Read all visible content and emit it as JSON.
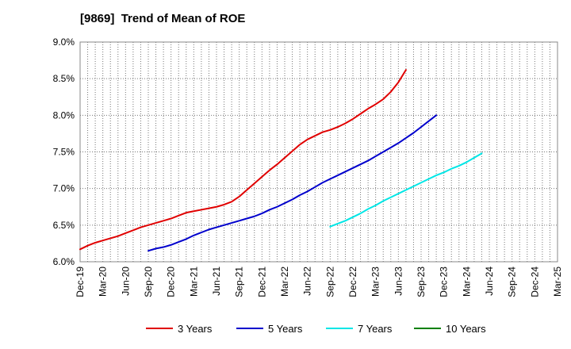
{
  "title": "[9869]  Trend of Mean of ROE",
  "chart_data": {
    "type": "line",
    "title": "[9869]  Trend of Mean of ROE",
    "xlabel": "",
    "ylabel": "",
    "x_ticks": [
      "Dec-19",
      "Mar-20",
      "Jun-20",
      "Sep-20",
      "Dec-20",
      "Mar-21",
      "Jun-21",
      "Sep-21",
      "Dec-21",
      "Mar-22",
      "Jun-22",
      "Sep-22",
      "Dec-22",
      "Mar-23",
      "Jun-23",
      "Sep-23",
      "Dec-23",
      "Mar-24",
      "Jun-24",
      "Sep-24",
      "Dec-24",
      "Mar-25"
    ],
    "y_ticks": [
      "6.0%",
      "6.5%",
      "7.0%",
      "7.5%",
      "8.0%",
      "8.5%",
      "9.0%"
    ],
    "ylim": [
      6.0,
      9.0
    ],
    "grid": true,
    "legend_position": "bottom",
    "series": [
      {
        "name": "3 Years",
        "color": "#e00000",
        "start": "Dec-19",
        "values": [
          6.17,
          6.22,
          6.26,
          6.29,
          6.32,
          6.35,
          6.39,
          6.43,
          6.47,
          6.5,
          6.53,
          6.56,
          6.59,
          6.63,
          6.67,
          6.69,
          6.71,
          6.73,
          6.75,
          6.78,
          6.82,
          6.89,
          6.98,
          7.07,
          7.16,
          7.25,
          7.33,
          7.42,
          7.51,
          7.6,
          7.67,
          7.72,
          7.77,
          7.8,
          7.84,
          7.89,
          7.95,
          8.02,
          8.09,
          8.15,
          8.22,
          8.32,
          8.45,
          8.62
        ]
      },
      {
        "name": "5 Years",
        "color": "#0000cc",
        "start": "Sep-20",
        "values": [
          6.15,
          6.18,
          6.2,
          6.23,
          6.27,
          6.31,
          6.36,
          6.4,
          6.44,
          6.47,
          6.5,
          6.53,
          6.56,
          6.59,
          6.62,
          6.66,
          6.71,
          6.75,
          6.8,
          6.85,
          6.91,
          6.96,
          7.02,
          7.08,
          7.13,
          7.18,
          7.23,
          7.28,
          7.33,
          7.38,
          7.44,
          7.5,
          7.56,
          7.62,
          7.69,
          7.76,
          7.84,
          7.92,
          8.0
        ]
      },
      {
        "name": "7 Years",
        "color": "#00e6e6",
        "start": "Sep-22",
        "values": [
          6.48,
          6.52,
          6.56,
          6.61,
          6.66,
          6.72,
          6.77,
          6.83,
          6.88,
          6.93,
          6.98,
          7.03,
          7.08,
          7.13,
          7.18,
          7.22,
          7.27,
          7.31,
          7.36,
          7.42,
          7.48
        ]
      },
      {
        "name": "10 Years",
        "color": "#008000",
        "start": "Dec-24",
        "values": []
      }
    ]
  }
}
